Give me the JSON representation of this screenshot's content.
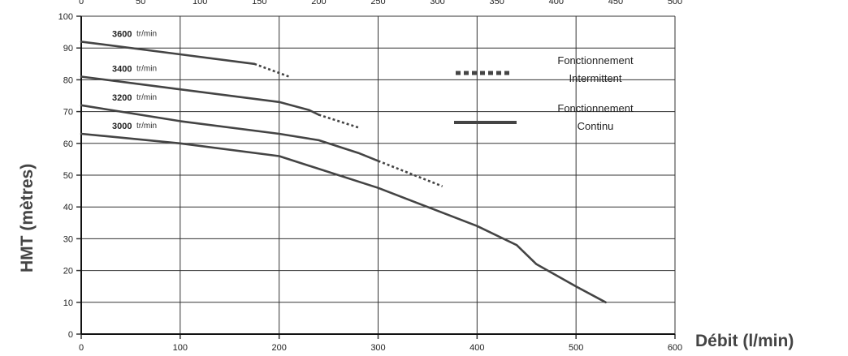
{
  "chart_data": {
    "type": "line",
    "xlabel": "Débit (l/min)",
    "ylabel": "HMT (mètres)",
    "xlim": [
      0,
      600
    ],
    "ylim": [
      0,
      100
    ],
    "x_ticks": [
      "0",
      "100",
      "200",
      "300",
      "400",
      "500",
      "600"
    ],
    "x_ticks_top": [
      "0",
      "50",
      "100",
      "150",
      "200",
      "250",
      "300",
      "350",
      "400",
      "450",
      "500"
    ],
    "y_ticks": [
      "0",
      "10",
      "20",
      "30",
      "40",
      "50",
      "60",
      "70",
      "80",
      "90",
      "100"
    ],
    "grid": true,
    "legend": {
      "placement": "right",
      "entries": [
        {
          "label_line1": "Fonctionnement",
          "label_line2": "Intermittent",
          "style": "dotted"
        },
        {
          "label_line1": "Fonctionnement",
          "label_line2": "Continu",
          "style": "solid"
        }
      ]
    },
    "series": [
      {
        "name": "3600",
        "unit": "tr/min",
        "continuous": [
          [
            0,
            92
          ],
          [
            100,
            88
          ],
          [
            175,
            85
          ]
        ],
        "intermittent": [
          [
            175,
            85
          ],
          [
            210,
            81
          ]
        ]
      },
      {
        "name": "3400",
        "unit": "tr/min",
        "continuous": [
          [
            0,
            81
          ],
          [
            100,
            77
          ],
          [
            200,
            73
          ],
          [
            230,
            70.5
          ],
          [
            240,
            69
          ]
        ],
        "intermittent": [
          [
            240,
            69
          ],
          [
            280,
            65
          ]
        ]
      },
      {
        "name": "3200",
        "unit": "tr/min",
        "continuous": [
          [
            0,
            72
          ],
          [
            100,
            67
          ],
          [
            200,
            63
          ],
          [
            240,
            61
          ],
          [
            280,
            57
          ],
          [
            300,
            54.5
          ]
        ],
        "intermittent": [
          [
            300,
            54.5
          ],
          [
            365,
            46.5
          ]
        ]
      },
      {
        "name": "3000",
        "unit": "tr/min",
        "continuous": [
          [
            0,
            63
          ],
          [
            100,
            60
          ],
          [
            200,
            56
          ],
          [
            300,
            46
          ],
          [
            350,
            40
          ],
          [
            400,
            34
          ],
          [
            440,
            28
          ],
          [
            460,
            22
          ],
          [
            500,
            15
          ],
          [
            530,
            10
          ]
        ],
        "intermittent": []
      }
    ]
  },
  "colors": {
    "curve": "#444444",
    "grid": "#333333",
    "text": "#222222"
  }
}
